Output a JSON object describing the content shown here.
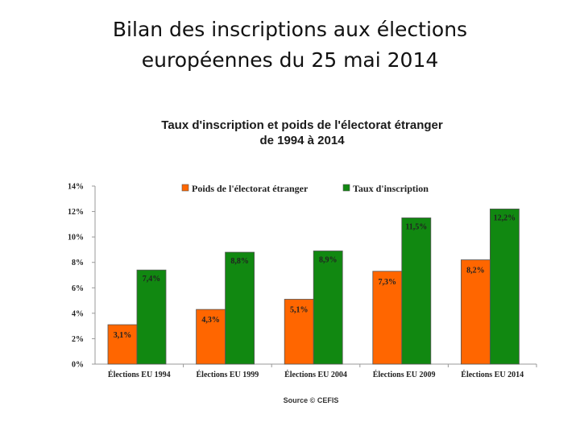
{
  "slide": {
    "title_line1": "Bilan des inscriptions aux élections",
    "title_line2": "européennes du 25 mai 2014"
  },
  "chart_data": {
    "type": "bar",
    "title_line1": "Taux d'inscription et poids de l'électorat étranger",
    "title_line2": "de 1994 à 2014",
    "categories": [
      "Élections EU 1994",
      "Élections EU 1999",
      "Élections EU 2004",
      "Élections EU 2009",
      "Élections EU 2014"
    ],
    "series": [
      {
        "name": "Poids de l'électorat étranger",
        "color": "#ff6600",
        "values": [
          3.1,
          4.3,
          5.1,
          7.3,
          8.2
        ],
        "labels": [
          "3,1%",
          "4,3%",
          "5,1%",
          "7,3%",
          "8,2%"
        ]
      },
      {
        "name": "Taux d'inscription",
        "color": "#118811",
        "values": [
          7.4,
          8.8,
          8.9,
          11.5,
          12.2
        ],
        "labels": [
          "7,4%",
          "8,8%",
          "8,9%",
          "11,5%",
          "12,2%"
        ]
      }
    ],
    "y_ticks": [
      0,
      2,
      4,
      6,
      8,
      10,
      12,
      14
    ],
    "y_tick_labels": [
      "0%",
      "2%",
      "4%",
      "6%",
      "8%",
      "10%",
      "12%",
      "14%"
    ],
    "ylim": [
      0,
      14
    ],
    "legend_position": "top",
    "xlabel": "",
    "ylabel": "",
    "source": "Source © CEFIS"
  }
}
